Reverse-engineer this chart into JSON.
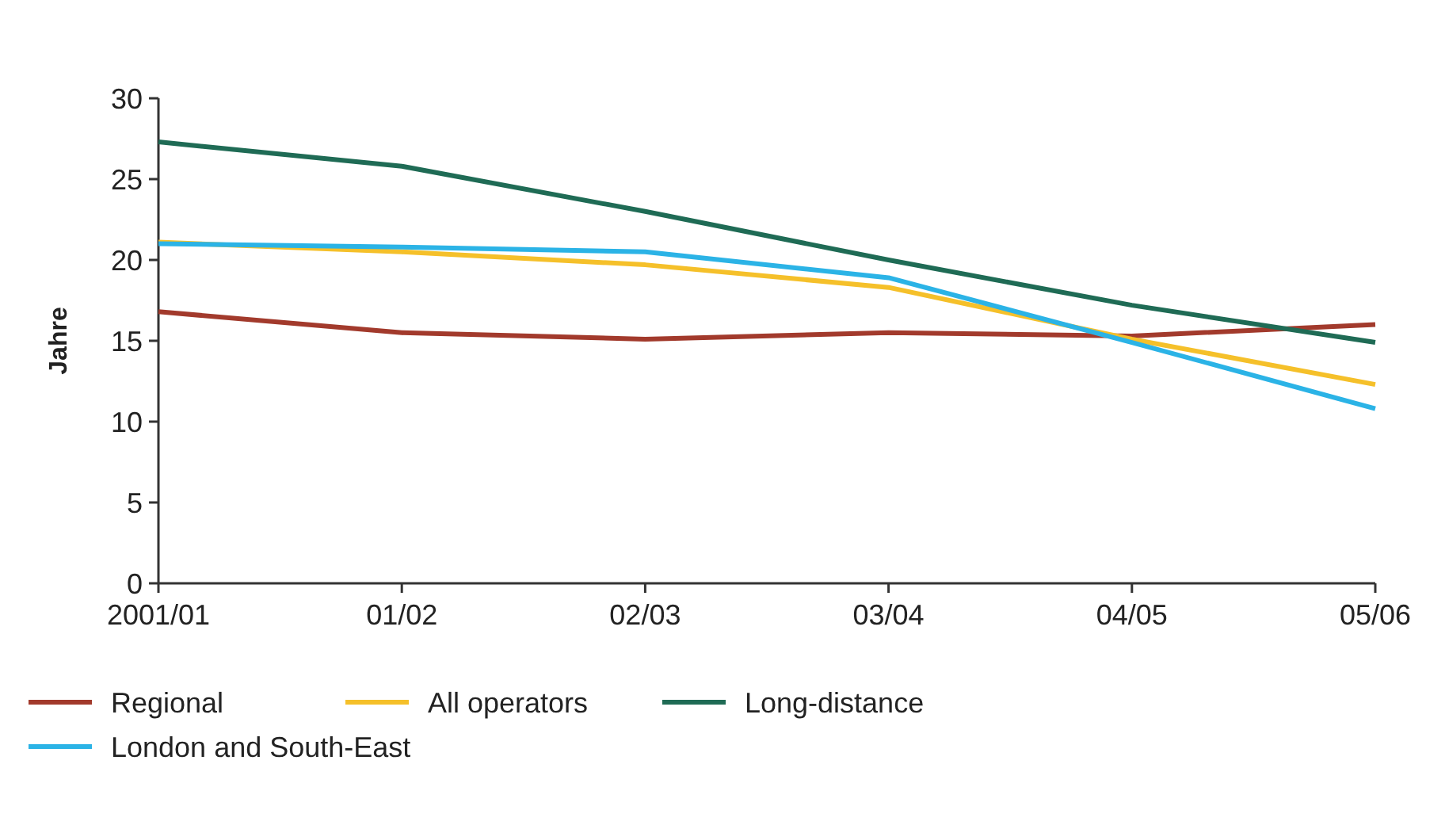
{
  "chart_data": {
    "type": "line",
    "ylabel": "Jahre",
    "categories": [
      "2001/01",
      "01/02",
      "02/03",
      "03/04",
      "04/05",
      "05/06"
    ],
    "series": [
      {
        "name": "Regional",
        "color": "#a23a2c",
        "values": [
          16.8,
          15.5,
          15.1,
          15.5,
          15.3,
          16.0
        ]
      },
      {
        "name": "All operators",
        "color": "#f5c02a",
        "values": [
          21.1,
          20.5,
          19.7,
          18.3,
          15.1,
          12.3
        ]
      },
      {
        "name": "Long-distance",
        "color": "#1f6b55",
        "values": [
          27.3,
          25.8,
          23.0,
          20.0,
          17.2,
          14.9
        ]
      },
      {
        "name": "London and South-East",
        "color": "#2bb3e6",
        "values": [
          21.0,
          20.8,
          20.5,
          18.9,
          14.9,
          10.8
        ]
      }
    ],
    "ylim": [
      0,
      30
    ],
    "yticks": [
      0,
      5,
      10,
      15,
      20,
      25,
      30
    ],
    "grid": false,
    "legend": "bottom",
    "marker": "none",
    "line_style": "solid"
  }
}
